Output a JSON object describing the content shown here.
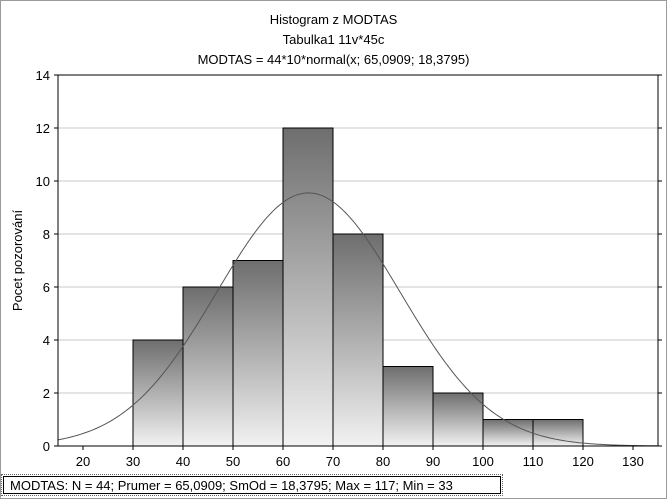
{
  "chart_data": {
    "type": "bar",
    "title": "Histogram z MODTAS",
    "subtitle": "Tabulka1 11v*45c",
    "formula": "MODTAS = 44*10*normal(x; 65,0909; 18,3795)",
    "xlabel": "",
    "ylabel": "Pocet pozorování",
    "xlim": [
      15,
      135
    ],
    "ylim": [
      0,
      14
    ],
    "x_ticks": [
      20,
      30,
      40,
      50,
      60,
      70,
      80,
      90,
      100,
      110,
      120,
      130
    ],
    "y_ticks": [
      0,
      2,
      4,
      6,
      8,
      10,
      12,
      14
    ],
    "bin_width": 10,
    "bins": [
      {
        "from": 30,
        "to": 40,
        "count": 4
      },
      {
        "from": 40,
        "to": 50,
        "count": 6
      },
      {
        "from": 50,
        "to": 60,
        "count": 7
      },
      {
        "from": 60,
        "to": 70,
        "count": 12
      },
      {
        "from": 70,
        "to": 80,
        "count": 8
      },
      {
        "from": 80,
        "to": 90,
        "count": 3
      },
      {
        "from": 90,
        "to": 100,
        "count": 2
      },
      {
        "from": 100,
        "to": 110,
        "count": 1
      },
      {
        "from": 110,
        "to": 120,
        "count": 1
      }
    ],
    "normal_fit": {
      "n": 44,
      "mean": 65.0909,
      "sd": 18.3795
    },
    "grid": true,
    "legend": "none"
  },
  "stats_line": "MODTAS:   N = 44; Prumer = 65,0909; SmOd = 18,3795; Max = 117; Min = 33",
  "colors": {
    "bar_top": "#6e6e6e",
    "bar_bottom": "#f2f2f2",
    "curve": "#555555",
    "grid": "#c8c8c8",
    "axis": "#000000"
  }
}
